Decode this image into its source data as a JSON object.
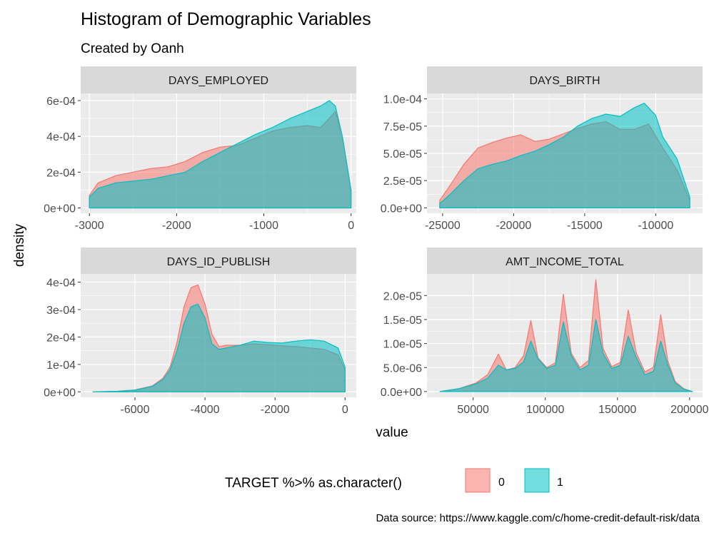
{
  "title": "Histogram of Demographic Variables",
  "subtitle": "Created by Oanh",
  "caption": "Data source: https://www.kaggle.com/c/home-credit-default-risk/data",
  "colors": {
    "target_0": "#F8766D",
    "target_1": "#00BFC4",
    "panel_bg": "#EBEBEB",
    "strip_bg": "#D9D9D9",
    "grid": "#FFFFFF"
  },
  "chart_data": {
    "type": "area",
    "x_axis_title": "value",
    "y_axis_title": "density",
    "legend": {
      "title": "TARGET %>% as.character()",
      "position": "bottom",
      "entries": [
        "0",
        "1"
      ]
    },
    "facets": [
      {
        "name": "DAYS_EMPLOYED",
        "xlim": [
          -3100,
          60
        ],
        "ylim": [
          -3e-05,
          0.00064
        ],
        "xticks": [
          -3000,
          -2000,
          -1000,
          0
        ],
        "xtick_labels": [
          "-3000",
          "-2000",
          "-1000",
          "0"
        ],
        "yticks": [
          0,
          0.0002,
          0.0004,
          0.0006
        ],
        "ytick_labels": [
          "0e+00",
          "2e-04",
          "4e-04",
          "6e-04"
        ],
        "series": [
          {
            "name": "0",
            "x": [
              -3000,
              -2900,
              -2700,
              -2500,
              -2300,
              -2100,
              -1900,
              -1700,
              -1500,
              -1300,
              -1100,
              -900,
              -700,
              -500,
              -350,
              -250,
              -180,
              -100,
              -50,
              0
            ],
            "y": [
              7e-05,
              0.00014,
              0.00018,
              0.0002,
              0.00022,
              0.00023,
              0.00026,
              0.00031,
              0.00034,
              0.00035,
              0.00039,
              0.00043,
              0.00045,
              0.00046,
              0.00045,
              0.0005,
              0.00054,
              0.0004,
              0.00025,
              0.0001
            ]
          },
          {
            "name": "1",
            "x": [
              -3000,
              -2900,
              -2700,
              -2500,
              -2300,
              -2100,
              -1900,
              -1700,
              -1500,
              -1300,
              -1100,
              -900,
              -700,
              -500,
              -350,
              -250,
              -180,
              -100,
              -50,
              0
            ],
            "y": [
              6e-05,
              0.00011,
              0.00014,
              0.00015,
              0.00016,
              0.00018,
              0.0002,
              0.00026,
              0.00031,
              0.00036,
              0.00041,
              0.00045,
              0.0005,
              0.00054,
              0.00057,
              0.0006,
              0.00057,
              0.0004,
              0.00025,
              0.0001
            ]
          }
        ]
      },
      {
        "name": "DAYS_BIRTH",
        "xlim": [
          -26100,
          -6700
        ],
        "ylim": [
          -5e-06,
          0.000105
        ],
        "xticks": [
          -25000,
          -20000,
          -15000,
          -10000
        ],
        "xtick_labels": [
          "-25000",
          "-20000",
          "-15000",
          "-10000"
        ],
        "yticks": [
          0,
          2.5e-05,
          5e-05,
          7.5e-05,
          0.0001
        ],
        "ytick_labels": [
          "0.0e+00",
          "2.5e-05",
          "5.0e-05",
          "7.5e-05",
          "1.0e-04"
        ],
        "series": [
          {
            "name": "0",
            "x": [
              -25200,
              -24500,
              -23500,
              -22500,
              -21500,
              -20500,
              -19500,
              -18500,
              -17500,
              -16500,
              -15500,
              -14500,
              -13500,
              -12500,
              -11500,
              -10500,
              -9500,
              -8500,
              -7600
            ],
            "y": [
              7e-06,
              2e-05,
              4e-05,
              5.5e-05,
              6e-05,
              6.4e-05,
              6.7e-05,
              6.1e-05,
              6.3e-05,
              6.8e-05,
              7.3e-05,
              7.7e-05,
              7.9e-05,
              7.2e-05,
              7.2e-05,
              7.7e-05,
              5.5e-05,
              3.5e-05,
              7e-06
            ]
          },
          {
            "name": "1",
            "x": [
              -25200,
              -24500,
              -23500,
              -22500,
              -21500,
              -20500,
              -19500,
              -18500,
              -17500,
              -16500,
              -15500,
              -14500,
              -13500,
              -12500,
              -11500,
              -10800,
              -10000,
              -9500,
              -8500,
              -7600
            ],
            "y": [
              4e-06,
              1.2e-05,
              2.5e-05,
              3.6e-05,
              4e-05,
              4.3e-05,
              4.8e-05,
              5.2e-05,
              5.8e-05,
              6.5e-05,
              7.5e-05,
              8.2e-05,
              8.6e-05,
              8.4e-05,
              9.2e-05,
              9.6e-05,
              8.5e-05,
              6.5e-05,
              4.5e-05,
              1e-05
            ]
          }
        ]
      },
      {
        "name": "DAYS_ID_PUBLISH",
        "xlim": [
          -7550,
          320
        ],
        "ylim": [
          -2e-05,
          0.00043
        ],
        "xticks": [
          -6000,
          -4000,
          -2000,
          0
        ],
        "xtick_labels": [
          "-6000",
          "-4000",
          "-2000",
          "0"
        ],
        "yticks": [
          0,
          0.0001,
          0.0002,
          0.0003,
          0.0004
        ],
        "ytick_labels": [
          "0e+00",
          "1e-04",
          "2e-04",
          "3e-04",
          "4e-04"
        ],
        "series": [
          {
            "name": "0",
            "x": [
              -7200,
              -6500,
              -6000,
              -5500,
              -5200,
              -5000,
              -4800,
              -4600,
              -4400,
              -4200,
              -4000,
              -3800,
              -3600,
              -3400,
              -3000,
              -2600,
              -2200,
              -1800,
              -1400,
              -1000,
              -600,
              -200,
              0
            ],
            "y": [
              0.0,
              2e-06,
              7e-06,
              2.2e-05,
              5e-05,
              9e-05,
              0.00018,
              0.00031,
              0.00038,
              0.00039,
              0.00032,
              0.00021,
              0.000165,
              0.00017,
              0.00017,
              0.000175,
              0.000172,
              0.000168,
              0.000165,
              0.00016,
              0.000155,
              0.000135,
              8e-05
            ]
          },
          {
            "name": "1",
            "x": [
              -7200,
              -6500,
              -6000,
              -5500,
              -5200,
              -5000,
              -4800,
              -4600,
              -4400,
              -4200,
              -4000,
              -3800,
              -3600,
              -3400,
              -3000,
              -2600,
              -2200,
              -1800,
              -1400,
              -1000,
              -600,
              -200,
              0
            ],
            "y": [
              0.0,
              2e-06,
              6e-06,
              2e-05,
              4.5e-05,
              8e-05,
              0.00015,
              0.00025,
              0.00031,
              0.00032,
              0.00027,
              0.000175,
              0.000155,
              0.00016,
              0.00017,
              0.000185,
              0.00018,
              0.000178,
              0.000185,
              0.00019,
              0.000185,
              0.00016,
              9e-05
            ]
          }
        ]
      },
      {
        "name": "AMT_INCOME_TOTAL",
        "xlim": [
          18000,
          209000
        ],
        "ylim": [
          -1.2e-06,
          2.45e-05
        ],
        "xticks": [
          50000,
          100000,
          150000,
          200000
        ],
        "xtick_labels": [
          "50000",
          "100000",
          "150000",
          "200000"
        ],
        "yticks": [
          0,
          5e-06,
          1e-05,
          1.5e-05,
          2e-05
        ],
        "ytick_labels": [
          "0.0e+00",
          "5.0e-06",
          "1.0e-05",
          "1.5e-05",
          "2.0e-05"
        ],
        "series": [
          {
            "name": "0",
            "x": [
              27000,
              40000,
              52000,
              60000,
              67500,
              73000,
              79000,
              85000,
              90000,
              95000,
              101000,
              107000,
              112500,
              118000,
              124000,
              130000,
              135000,
              140000,
              146000,
              152000,
              157500,
              163000,
              169000,
              175000,
              180000,
              185000,
              190000,
              196000,
              202000
            ],
            "y": [
              0.0,
              6e-07,
              1.8e-06,
              3.5e-06,
              7.8e-06,
              4.5e-06,
              5e-06,
              7.5e-06,
              1.48e-05,
              7e-06,
              5e-06,
              6e-06,
              2.03e-05,
              8e-06,
              5e-06,
              6.5e-06,
              2.33e-05,
              9e-06,
              5.2e-06,
              6.1e-06,
              1.7e-05,
              8.1e-06,
              4.1e-06,
              5.1e-06,
              1.6e-05,
              6.3e-06,
              2.1e-06,
              6e-07,
              0.0
            ]
          },
          {
            "name": "1",
            "x": [
              27000,
              40000,
              52000,
              60000,
              67500,
              73000,
              79000,
              85000,
              90000,
              95000,
              101000,
              107000,
              112500,
              118000,
              124000,
              130000,
              135000,
              140000,
              146000,
              152000,
              157500,
              163000,
              169000,
              175000,
              180000,
              185000,
              190000,
              196000,
              202000
            ],
            "y": [
              0.0,
              6e-07,
              1.6e-06,
              2.8e-06,
              5.5e-06,
              4.5e-06,
              4.8e-06,
              6.2e-06,
              1.05e-05,
              6.8e-06,
              4.8e-06,
              5.5e-06,
              1.45e-05,
              7.5e-06,
              4.5e-06,
              5.5e-06,
              1.5e-05,
              8e-06,
              4.8e-06,
              5.5e-06,
              1.15e-05,
              7.2e-06,
              3.5e-06,
              4.2e-06,
              1.05e-05,
              5.5e-06,
              1.8e-06,
              5e-07,
              0.0
            ]
          }
        ]
      }
    ]
  }
}
